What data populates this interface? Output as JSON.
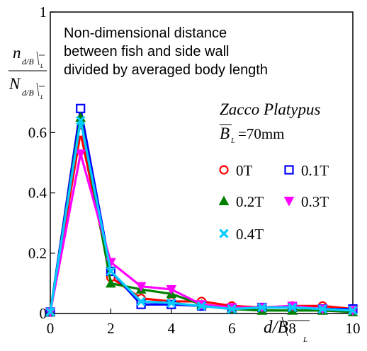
{
  "chart_data": {
    "type": "line",
    "x": [
      0,
      1,
      2,
      3,
      4,
      5,
      6,
      7,
      8,
      9,
      10
    ],
    "xlim": [
      0,
      10
    ],
    "ylim": [
      0,
      1
    ],
    "x_ticks": [
      "0",
      "2",
      "4",
      "6",
      "8",
      "10"
    ],
    "y_ticks": [
      "0",
      "0.2",
      "0.4",
      "0.6",
      "1"
    ],
    "ylabel_num": {
      "base": "n",
      "sub": "d/B",
      "sub2": "L"
    },
    "ylabel_den": {
      "base": "N",
      "sub": "d/B",
      "sub2": "L"
    },
    "xlabel": {
      "base": "d/B",
      "sub": "L"
    },
    "annotation_lines": [
      "Non-dimensional distance",
      "between fish and side wall",
      "divided by averaged body length"
    ],
    "species": "Zacco Platypus",
    "body_length": {
      "symbol": "B",
      "sub": "L",
      "value": "=70mm"
    },
    "grid": false,
    "legend_position": "right",
    "series": [
      {
        "name": "0T",
        "color": "#ff0000",
        "marker": "circle",
        "values": [
          0.005,
          0.6,
          0.12,
          0.05,
          0.04,
          0.04,
          0.025,
          0.02,
          0.025,
          0.025,
          0.015
        ]
      },
      {
        "name": "0.1T",
        "color": "#0000ff",
        "marker": "square",
        "values": [
          0.005,
          0.68,
          0.14,
          0.03,
          0.03,
          0.025,
          0.015,
          0.02,
          0.02,
          0.015,
          0.015
        ]
      },
      {
        "name": "0.2T",
        "color": "#008000",
        "marker": "triangle-up",
        "values": [
          0.005,
          0.65,
          0.1,
          0.08,
          0.065,
          0.03,
          0.015,
          0.01,
          0.01,
          0.01,
          0.005
        ]
      },
      {
        "name": "0.3T",
        "color": "#ff00ff",
        "marker": "triangle-down",
        "values": [
          0.005,
          0.53,
          0.17,
          0.09,
          0.08,
          0.03,
          0.02,
          0.02,
          0.025,
          0.015,
          0.01
        ]
      },
      {
        "name": "0.4T",
        "color": "#00ccff",
        "marker": "x",
        "values": [
          0.005,
          0.64,
          0.14,
          0.04,
          0.035,
          0.025,
          0.015,
          0.02,
          0.02,
          0.015,
          0.01
        ]
      }
    ]
  }
}
